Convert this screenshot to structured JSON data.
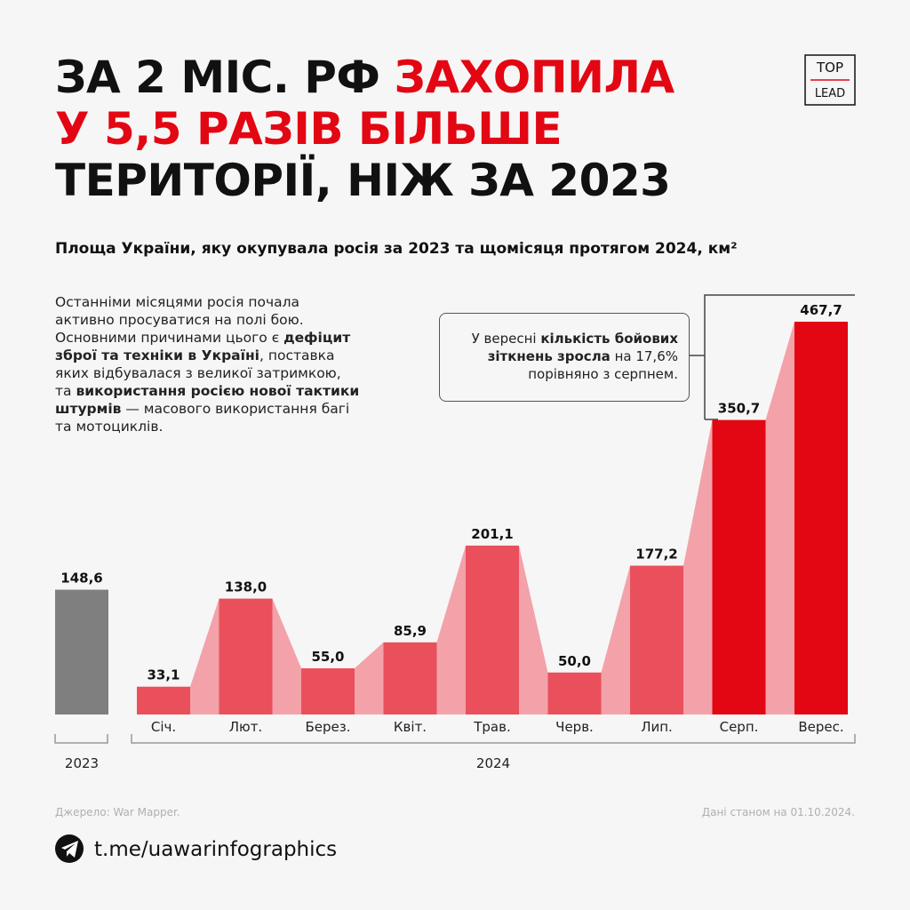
{
  "header": {
    "title_lines": [
      [
        {
          "text": "ЗА 2 МІС. РФ",
          "color": "#111111"
        },
        {
          "text": "ЗАХОПИЛА",
          "color": "#e30613"
        }
      ],
      [
        {
          "text": "У 5,5 РАЗІВ БІЛЬШЕ",
          "color": "#e30613"
        }
      ],
      [
        {
          "text": "ТЕРИТОРІЇ, НІЖ ЗА 2023",
          "color": "#111111"
        }
      ]
    ],
    "subtitle": "Площа України, яку окупувала росія за 2023 та щомісяця протягом 2024, км²",
    "logo": [
      "TOP",
      "LEAD"
    ]
  },
  "note": [
    {
      "text": "Останніми місяцями росія почала активно просуватися на полі бою. Основними причинами цього є ",
      "bold": false
    },
    {
      "text": "дефіцит зброї та техніки в Україні",
      "bold": true
    },
    {
      "text": ", поставка яких відбувалася з великої затримкою, та ",
      "bold": false
    },
    {
      "text": "використання росією нової тактики штурмів",
      "bold": true
    },
    {
      "text": " — масового використання багі та мотоциклів.",
      "bold": false
    }
  ],
  "annotation": [
    {
      "text": "У вересні ",
      "bold": false
    },
    {
      "text": "кількість бойових зіткнень зросла",
      "bold": true
    },
    {
      "text": " на 17,6% порівняно з серпнем.",
      "bold": false
    }
  ],
  "chart_data": [
    {
      "type": "bar",
      "x_label": "2023",
      "categories": [
        null
      ],
      "values": [
        148.6
      ],
      "value_labels": [
        "148,6"
      ],
      "color": "#7f7f7f"
    },
    {
      "type": "bar",
      "x_label": "2024",
      "categories": [
        "Січ.",
        "Лют.",
        "Берез.",
        "Квіт.",
        "Трав.",
        "Черв.",
        "Лип.",
        "Серп.",
        "Верес."
      ],
      "values": [
        33.1,
        138.0,
        55.0,
        85.9,
        201.1,
        50.0,
        177.2,
        350.7,
        467.7
      ],
      "value_labels": [
        "33,1",
        "138,0",
        "55,0",
        "85,9",
        "201,1",
        "50,0",
        "177,2",
        "350,7",
        "467,7"
      ],
      "colors": [
        "#e9505c",
        "#e9505c",
        "#e9505c",
        "#e9505c",
        "#e9505c",
        "#e9505c",
        "#e9505c",
        "#e30613",
        "#e30613"
      ],
      "connector_color": "#f3a2a9"
    }
  ],
  "footer": {
    "source": "Джерело: War Mapper.",
    "date": "Дані станом на 01.10.2024.",
    "link": "t.me/uawarinfographics"
  }
}
